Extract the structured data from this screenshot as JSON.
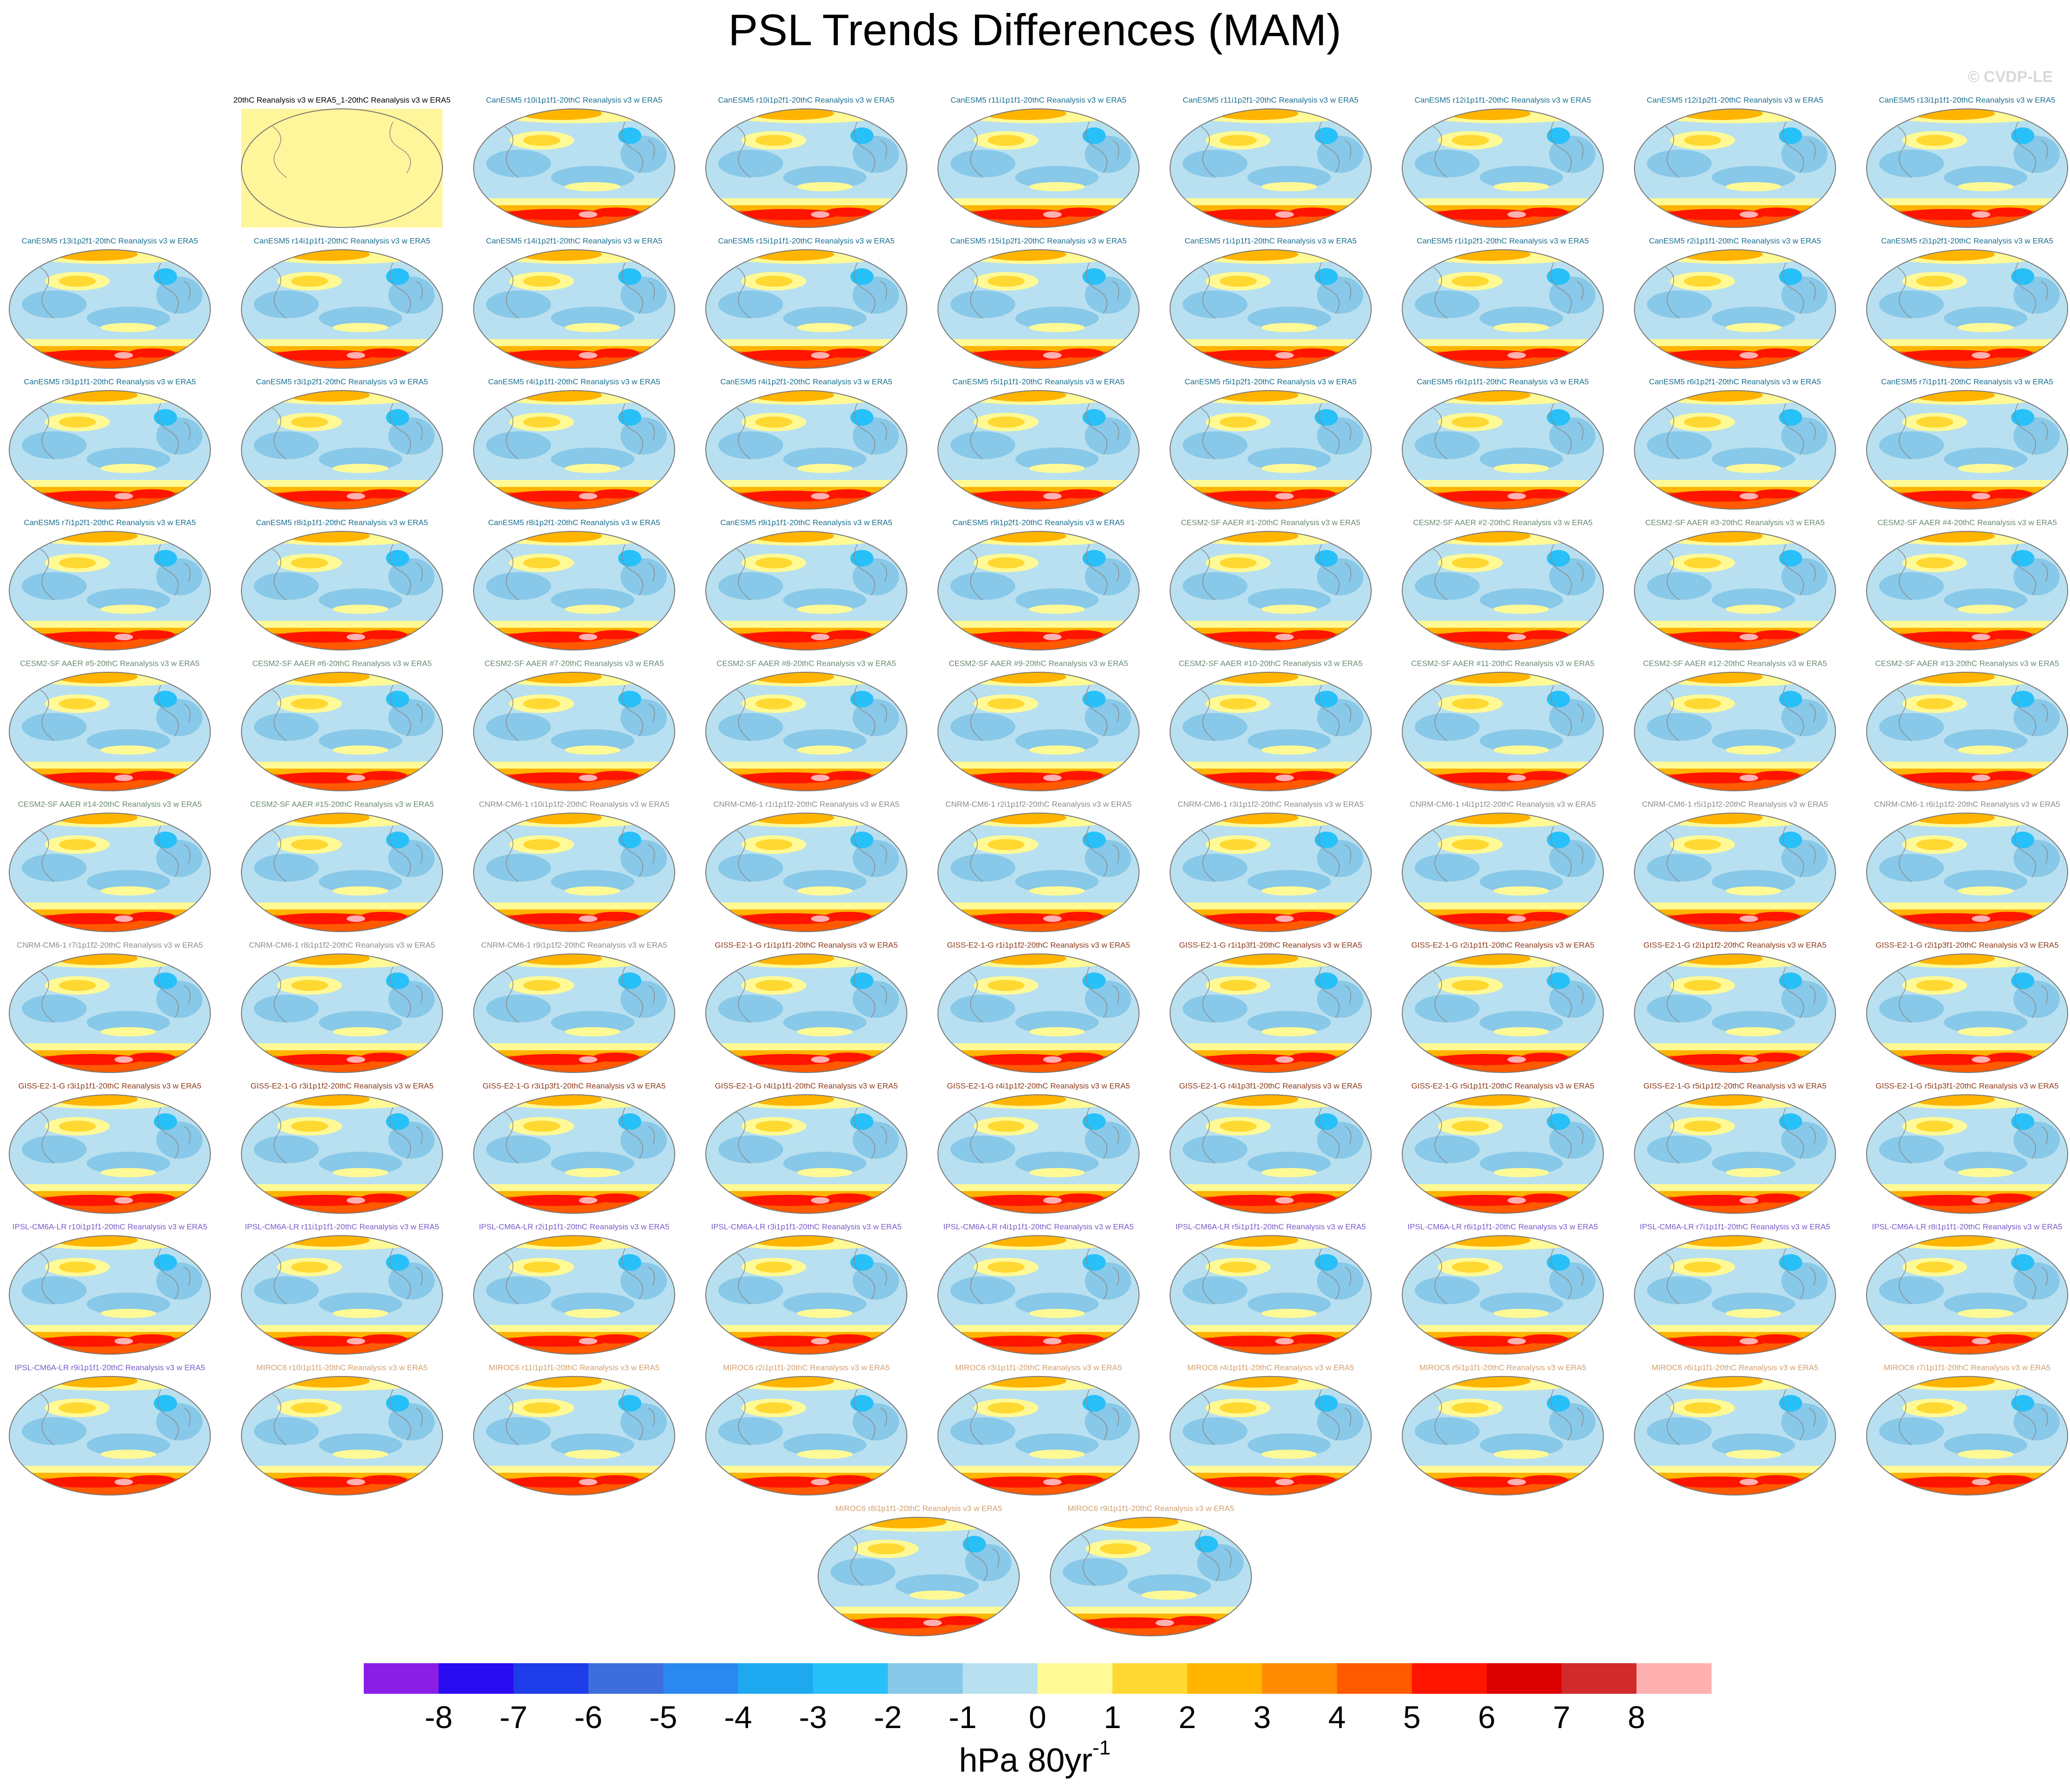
{
  "title": "PSL Trends Differences (MAM)",
  "watermark": "© CVDP-LE",
  "panels": [
    {
      "title": "20thC Reanalysis v3 w ERA5_1-20thC Reanalysis v3 w ERA5",
      "color": "#000000"
    },
    {
      "title": "CanESM5 r10i1p1f1-20thC Reanalysis v3 w ERA5",
      "color": "#1a7090"
    },
    {
      "title": "CanESM5 r10i1p2f1-20thC Reanalysis v3 w ERA5",
      "color": "#1a7090"
    },
    {
      "title": "CanESM5 r11i1p1f1-20thC Reanalysis v3 w ERA5",
      "color": "#1a7090"
    },
    {
      "title": "CanESM5 r11i1p2f1-20thC Reanalysis v3 w ERA5",
      "color": "#1a7090"
    },
    {
      "title": "CanESM5 r12i1p1f1-20thC Reanalysis v3 w ERA5",
      "color": "#1a7090"
    },
    {
      "title": "CanESM5 r12i1p2f1-20thC Reanalysis v3 w ERA5",
      "color": "#1a7090"
    },
    {
      "title": "CanESM5 r13i1p1f1-20thC Reanalysis v3 w ERA5",
      "color": "#1a7090"
    },
    {
      "title": "CanESM5 r13i1p2f1-20thC Reanalysis v3 w ERA5",
      "color": "#1a7090"
    },
    {
      "title": "CanESM5 r14i1p1f1-20thC Reanalysis v3 w ERA5",
      "color": "#1a7090"
    },
    {
      "title": "CanESM5 r14i1p2f1-20thC Reanalysis v3 w ERA5",
      "color": "#1a7090"
    },
    {
      "title": "CanESM5 r15i1p1f1-20thC Reanalysis v3 w ERA5",
      "color": "#1a7090"
    },
    {
      "title": "CanESM5 r15i1p2f1-20thC Reanalysis v3 w ERA5",
      "color": "#1a7090"
    },
    {
      "title": "CanESM5 r1i1p1f1-20thC Reanalysis v3 w ERA5",
      "color": "#1a7090"
    },
    {
      "title": "CanESM5 r1i1p2f1-20thC Reanalysis v3 w ERA5",
      "color": "#1a7090"
    },
    {
      "title": "CanESM5 r2i1p1f1-20thC Reanalysis v3 w ERA5",
      "color": "#1a7090"
    },
    {
      "title": "CanESM5 r2i1p2f1-20thC Reanalysis v3 w ERA5",
      "color": "#1a7090"
    },
    {
      "title": "CanESM5 r3i1p1f1-20thC Reanalysis v3 w ERA5",
      "color": "#1a7090"
    },
    {
      "title": "CanESM5 r3i1p2f1-20thC Reanalysis v3 w ERA5",
      "color": "#1a7090"
    },
    {
      "title": "CanESM5 r4i1p1f1-20thC Reanalysis v3 w ERA5",
      "color": "#1a7090"
    },
    {
      "title": "CanESM5 r4i1p2f1-20thC Reanalysis v3 w ERA5",
      "color": "#1a7090"
    },
    {
      "title": "CanESM5 r5i1p1f1-20thC Reanalysis v3 w ERA5",
      "color": "#1a7090"
    },
    {
      "title": "CanESM5 r5i1p2f1-20thC Reanalysis v3 w ERA5",
      "color": "#1a7090"
    },
    {
      "title": "CanESM5 r6i1p1f1-20thC Reanalysis v3 w ERA5",
      "color": "#1a7090"
    },
    {
      "title": "CanESM5 r6i1p2f1-20thC Reanalysis v3 w ERA5",
      "color": "#1a7090"
    },
    {
      "title": "CanESM5 r7i1p1f1-20thC Reanalysis v3 w ERA5",
      "color": "#1a7090"
    },
    {
      "title": "CanESM5 r7i1p2f1-20thC Reanalysis v3 w ERA5",
      "color": "#1a7090"
    },
    {
      "title": "CanESM5 r8i1p1f1-20thC Reanalysis v3 w ERA5",
      "color": "#1a7090"
    },
    {
      "title": "CanESM5 r8i1p2f1-20thC Reanalysis v3 w ERA5",
      "color": "#1a7090"
    },
    {
      "title": "CanESM5 r9i1p1f1-20thC Reanalysis v3 w ERA5",
      "color": "#1a7090"
    },
    {
      "title": "CanESM5 r9i1p2f1-20thC Reanalysis v3 w ERA5",
      "color": "#1a7090"
    },
    {
      "title": "CESM2-SF AAER #1-20thC Reanalysis v3 w ERA5",
      "color": "#6a8a70"
    },
    {
      "title": "CESM2-SF AAER #2-20thC Reanalysis v3 w ERA5",
      "color": "#6a8a70"
    },
    {
      "title": "CESM2-SF AAER #3-20thC Reanalysis v3 w ERA5",
      "color": "#6a8a70"
    },
    {
      "title": "CESM2-SF AAER #4-20thC Reanalysis v3 w ERA5",
      "color": "#6a8a70"
    },
    {
      "title": "CESM2-SF AAER #5-20thC Reanalysis v3 w ERA5",
      "color": "#6a8a70"
    },
    {
      "title": "CESM2-SF AAER #6-20thC Reanalysis v3 w ERA5",
      "color": "#6a8a70"
    },
    {
      "title": "CESM2-SF AAER #7-20thC Reanalysis v3 w ERA5",
      "color": "#6a8a70"
    },
    {
      "title": "CESM2-SF AAER #8-20thC Reanalysis v3 w ERA5",
      "color": "#6a8a70"
    },
    {
      "title": "CESM2-SF AAER #9-20thC Reanalysis v3 w ERA5",
      "color": "#6a8a70"
    },
    {
      "title": "CESM2-SF AAER #10-20thC Reanalysis v3 w ERA5",
      "color": "#6a8a70"
    },
    {
      "title": "CESM2-SF AAER #11-20thC Reanalysis v3 w ERA5",
      "color": "#6a8a70"
    },
    {
      "title": "CESM2-SF AAER #12-20thC Reanalysis v3 w ERA5",
      "color": "#6a8a70"
    },
    {
      "title": "CESM2-SF AAER #13-20thC Reanalysis v3 w ERA5",
      "color": "#6a8a70"
    },
    {
      "title": "CESM2-SF AAER #14-20thC Reanalysis v3 w ERA5",
      "color": "#6a8a70"
    },
    {
      "title": "CESM2-SF AAER #15-20thC Reanalysis v3 w ERA5",
      "color": "#6a8a70"
    },
    {
      "title": "CNRM-CM6-1 r10i1p1f2-20thC Reanalysis v3 w ERA5",
      "color": "#8c8c8c"
    },
    {
      "title": "CNRM-CM6-1 r1i1p1f2-20thC Reanalysis v3 w ERA5",
      "color": "#8c8c8c"
    },
    {
      "title": "CNRM-CM6-1 r2i1p1f2-20thC Reanalysis v3 w ERA5",
      "color": "#8c8c8c"
    },
    {
      "title": "CNRM-CM6-1 r3i1p1f2-20thC Reanalysis v3 w ERA5",
      "color": "#8c8c8c"
    },
    {
      "title": "CNRM-CM6-1 r4i1p1f2-20thC Reanalysis v3 w ERA5",
      "color": "#8c8c8c"
    },
    {
      "title": "CNRM-CM6-1 r5i1p1f2-20thC Reanalysis v3 w ERA5",
      "color": "#8c8c8c"
    },
    {
      "title": "CNRM-CM6-1 r6i1p1f2-20thC Reanalysis v3 w ERA5",
      "color": "#8c8c8c"
    },
    {
      "title": "CNRM-CM6-1 r7i1p1f2-20thC Reanalysis v3 w ERA5",
      "color": "#8c8c8c"
    },
    {
      "title": "CNRM-CM6-1 r8i1p1f2-20thC Reanalysis v3 w ERA5",
      "color": "#8c8c8c"
    },
    {
      "title": "CNRM-CM6-1 r9i1p1f2-20thC Reanalysis v3 w ERA5",
      "color": "#8c8c8c"
    },
    {
      "title": "GISS-E2-1-G r1i1p1f1-20thC Reanalysis v3 w ERA5",
      "color": "#8b3a1a"
    },
    {
      "title": "GISS-E2-1-G r1i1p1f2-20thC Reanalysis v3 w ERA5",
      "color": "#8b3a1a"
    },
    {
      "title": "GISS-E2-1-G r1i1p3f1-20thC Reanalysis v3 w ERA5",
      "color": "#8b3a1a"
    },
    {
      "title": "GISS-E2-1-G r2i1p1f1-20thC Reanalysis v3 w ERA5",
      "color": "#8b3a1a"
    },
    {
      "title": "GISS-E2-1-G r2i1p1f2-20thC Reanalysis v3 w ERA5",
      "color": "#8b3a1a"
    },
    {
      "title": "GISS-E2-1-G r2i1p3f1-20thC Reanalysis v3 w ERA5",
      "color": "#8b3a1a"
    },
    {
      "title": "GISS-E2-1-G r3i1p1f1-20thC Reanalysis v3 w ERA5",
      "color": "#8b3a1a"
    },
    {
      "title": "GISS-E2-1-G r3i1p1f2-20thC Reanalysis v3 w ERA5",
      "color": "#8b3a1a"
    },
    {
      "title": "GISS-E2-1-G r3i1p3f1-20thC Reanalysis v3 w ERA5",
      "color": "#8b3a1a"
    },
    {
      "title": "GISS-E2-1-G r4i1p1f1-20thC Reanalysis v3 w ERA5",
      "color": "#8b3a1a"
    },
    {
      "title": "GISS-E2-1-G r4i1p1f2-20thC Reanalysis v3 w ERA5",
      "color": "#8b3a1a"
    },
    {
      "title": "GISS-E2-1-G r4i1p3f1-20thC Reanalysis v3 w ERA5",
      "color": "#8b3a1a"
    },
    {
      "title": "GISS-E2-1-G r5i1p1f1-20thC Reanalysis v3 w ERA5",
      "color": "#8b3a1a"
    },
    {
      "title": "GISS-E2-1-G r5i1p1f2-20thC Reanalysis v3 w ERA5",
      "color": "#8b3a1a"
    },
    {
      "title": "GISS-E2-1-G r5i1p3f1-20thC Reanalysis v3 w ERA5",
      "color": "#8b3a1a"
    },
    {
      "title": "IPSL-CM6A-LR r10i1p1f1-20thC Reanalysis v3 w ERA5",
      "color": "#7a5ac8"
    },
    {
      "title": "IPSL-CM6A-LR r11i1p1f1-20thC Reanalysis v3 w ERA5",
      "color": "#7a5ac8"
    },
    {
      "title": "IPSL-CM6A-LR r2i1p1f1-20thC Reanalysis v3 w ERA5",
      "color": "#7a5ac8"
    },
    {
      "title": "IPSL-CM6A-LR r3i1p1f1-20thC Reanalysis v3 w ERA5",
      "color": "#7a5ac8"
    },
    {
      "title": "IPSL-CM6A-LR r4i1p1f1-20thC Reanalysis v3 w ERA5",
      "color": "#7a5ac8"
    },
    {
      "title": "IPSL-CM6A-LR r5i1p1f1-20thC Reanalysis v3 w ERA5",
      "color": "#7a5ac8"
    },
    {
      "title": "IPSL-CM6A-LR r6i1p1f1-20thC Reanalysis v3 w ERA5",
      "color": "#7a5ac8"
    },
    {
      "title": "IPSL-CM6A-LR r7i1p1f1-20thC Reanalysis v3 w ERA5",
      "color": "#7a5ac8"
    },
    {
      "title": "IPSL-CM6A-LR r8i1p1f1-20thC Reanalysis v3 w ERA5",
      "color": "#7a5ac8"
    },
    {
      "title": "IPSL-CM6A-LR r9i1p1f1-20thC Reanalysis v3 w ERA5",
      "color": "#7a5ac8"
    },
    {
      "title": "MIROC6 r10i1p1f1-20thC Reanalysis v3 w ERA5",
      "color": "#d0a070"
    },
    {
      "title": "MIROC6 r11i1p1f1-20thC Reanalysis v3 w ERA5",
      "color": "#d0a070"
    },
    {
      "title": "MIROC6 r2i1p1f1-20thC Reanalysis v3 w ERA5",
      "color": "#d0a070"
    },
    {
      "title": "MIROC6 r3i1p1f1-20thC Reanalysis v3 w ERA5",
      "color": "#d0a070"
    },
    {
      "title": "MIROC6 r4i1p1f1-20thC Reanalysis v3 w ERA5",
      "color": "#d0a070"
    },
    {
      "title": "MIROC6 r5i1p1f1-20thC Reanalysis v3 w ERA5",
      "color": "#d0a070"
    },
    {
      "title": "MIROC6 r6i1p1f1-20thC Reanalysis v3 w ERA5",
      "color": "#d0a070"
    },
    {
      "title": "MIROC6 r7i1p1f1-20thC Reanalysis v3 w ERA5",
      "color": "#d0a070"
    },
    {
      "title": "MIROC6 r8i1p1f1-20thC Reanalysis v3 w ERA5",
      "color": "#d0a070"
    },
    {
      "title": "MIROC6 r9i1p1f1-20thC Reanalysis v3 w ERA5",
      "color": "#d0a070"
    }
  ],
  "colorbar": {
    "levels": [
      -8,
      -7,
      -6,
      -5,
      -4,
      -3,
      -2,
      -1,
      0,
      1,
      2,
      3,
      4,
      5,
      6,
      7,
      8
    ],
    "colors": [
      "#8a1ee6",
      "#2a0cf0",
      "#1e3ce8",
      "#3c6edc",
      "#2a88f0",
      "#1ea8f0",
      "#28c0f8",
      "#88c8e8",
      "#b8e0f0",
      "#fffa96",
      "#ffd832",
      "#ffb400",
      "#ff8c00",
      "#ff5a00",
      "#ff1400",
      "#dc0000",
      "#d22a2a",
      "#ffb0b0"
    ],
    "units": "hPa 80yr",
    "units_exponent": "-1"
  }
}
